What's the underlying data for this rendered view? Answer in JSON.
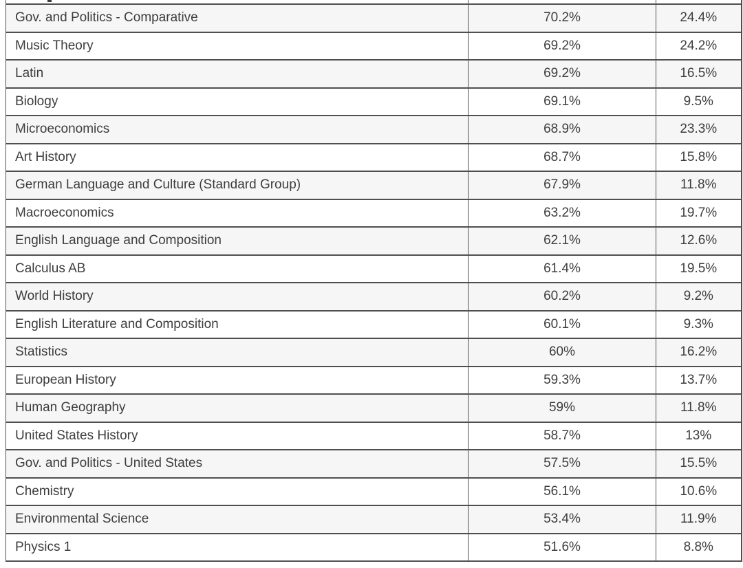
{
  "chart_data": {
    "type": "table",
    "title": "",
    "columns_visible": false,
    "rows": [
      [
        "Gov. and Politics - Comparative",
        "70.2%",
        "24.4%"
      ],
      [
        "Music Theory",
        "69.2%",
        "24.2%"
      ],
      [
        "Latin",
        "69.2%",
        "16.5%"
      ],
      [
        "Biology",
        "69.1%",
        "9.5%"
      ],
      [
        "Microeconomics",
        "68.9%",
        "23.3%"
      ],
      [
        "Art History",
        "68.7%",
        "15.8%"
      ],
      [
        "German Language and Culture (Standard Group)",
        "67.9%",
        "11.8%"
      ],
      [
        "Macroeconomics",
        "63.2%",
        "19.7%"
      ],
      [
        "English Language and Composition",
        "62.1%",
        "12.6%"
      ],
      [
        "Calculus AB",
        "61.4%",
        "19.5%"
      ],
      [
        "World History",
        "60.2%",
        "9.2%"
      ],
      [
        "English Literature and Composition",
        "60.1%",
        "9.3%"
      ],
      [
        "Statistics",
        "60%",
        "16.2%"
      ],
      [
        "European History",
        "59.3%",
        "13.7%"
      ],
      [
        "Human Geography",
        "59%",
        "11.8%"
      ],
      [
        "United States History",
        "58.7%",
        "13%"
      ],
      [
        "Gov. and Politics - United States",
        "57.5%",
        "15.5%"
      ],
      [
        "Chemistry",
        "56.1%",
        "10.6%"
      ],
      [
        "Environmental Science",
        "53.4%",
        "11.9%"
      ],
      [
        "Physics 1",
        "51.6%",
        "8.8%"
      ]
    ],
    "layout_hints": {
      "first_row_shaded": true,
      "alternating_rows": true,
      "clipped_partial_row_at_top": true
    }
  },
  "colors": {
    "border": "#4f4f4f",
    "text": "#3d3d3d",
    "shaded_row_bg": "#f6f6f6",
    "plain_row_bg": "#ffffff"
  }
}
